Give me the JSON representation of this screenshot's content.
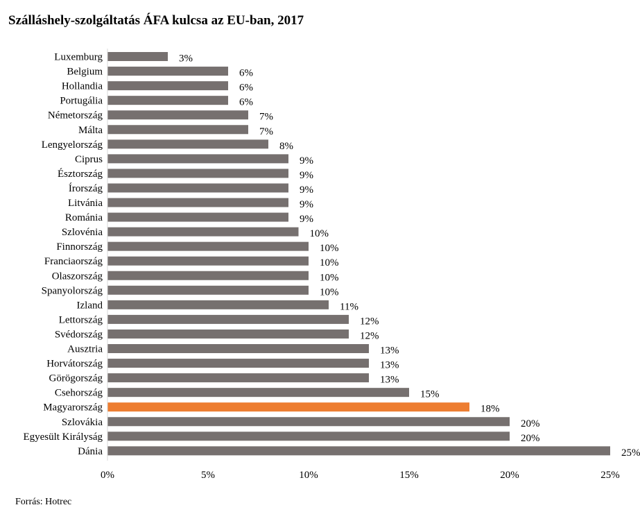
{
  "title": "Szálláshely-szolgáltatás ÁFA kulcsa az EU-ban, 2017",
  "source": "Forrás: Hotrec",
  "colors": {
    "bar": "#76706f",
    "highlight": "#ed7d31"
  },
  "chart_data": {
    "type": "bar",
    "orientation": "horizontal",
    "title": "Szálláshely-szolgáltatás ÁFA kulcsa az EU-ban, 2017",
    "categories": [
      "Luxemburg",
      "Belgium",
      "Hollandia",
      "Portugália",
      "Németország",
      "Málta",
      "Lengyelország",
      "Ciprus",
      "Észtország",
      "Írország",
      "Litvánia",
      "Románia",
      "Szlovénia",
      "Finnország",
      "Franciaország",
      "Olaszország",
      "Spanyolország",
      "Izland",
      "Lettország",
      "Svédország",
      "Ausztria",
      "Horvátország",
      "Görögország",
      "Csehország",
      "Magyarország",
      "Szlovákia",
      "Egyesült Királyság",
      "Dánia"
    ],
    "values": [
      3,
      6,
      6,
      6,
      7,
      7,
      8,
      9,
      9,
      9,
      9,
      9,
      9.5,
      10,
      10,
      10,
      10,
      11,
      12,
      12,
      13,
      13,
      13,
      15,
      18,
      20,
      20,
      25
    ],
    "value_labels": [
      "3%",
      "6%",
      "6%",
      "6%",
      "7%",
      "7%",
      "8%",
      "9%",
      "9%",
      "9%",
      "9%",
      "9%",
      "10%",
      "10%",
      "10%",
      "10%",
      "10%",
      "11%",
      "12%",
      "12%",
      "13%",
      "13%",
      "13%",
      "15%",
      "18%",
      "20%",
      "20%",
      "25%"
    ],
    "highlight": "Magyarország",
    "xlim": [
      0,
      25
    ],
    "xticks": [
      "0%",
      "5%",
      "10%",
      "15%",
      "20%",
      "25%"
    ],
    "xlabel": "",
    "ylabel": "",
    "grid": false,
    "legend": "none"
  }
}
